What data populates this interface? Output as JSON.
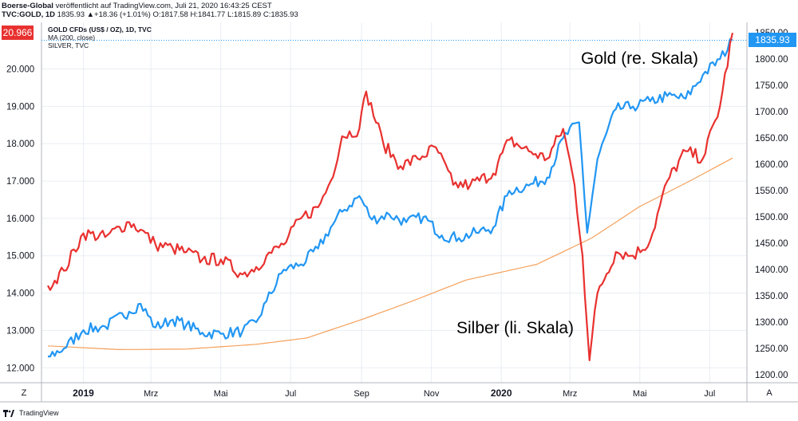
{
  "header": {
    "publisher": "Boerse-Global",
    "published_text": "veröffentlicht auf TradingView.com, Juli 21, 2020 16:43:25 CEST",
    "symbol": "TVC:GOLD, 1D",
    "quote": "1835.93 ▲+18.36 (+1.01%) O:1817.58 H:1841.77 L:1815.89 C:1835.93"
  },
  "legend": {
    "main": "GOLD CFDs (US$ / OZ), 1D, TVC",
    "ma": "MA (200, close)",
    "silver": "SILVER, TVC"
  },
  "badges": {
    "left": "20.966",
    "right": "1835.93"
  },
  "annotations": {
    "gold": "Gold (re. Skala)",
    "silver": "Silber (li. Skala)"
  },
  "buttons": {
    "left": "Z",
    "right": "A"
  },
  "footer": {
    "brand": "TradingView"
  },
  "colors": {
    "gold": "#2196f3",
    "silver": "#e8312f",
    "ma": "#f5a05a",
    "grid": "#e9edf3",
    "axis_text": "#131722"
  },
  "chart_data": {
    "type": "line",
    "x_ticks": [
      "2019",
      "Mrz",
      "Mai",
      "Jul",
      "Sep",
      "Nov",
      "2020",
      "Mrz",
      "Mai",
      "Jul"
    ],
    "x_range": [
      "2018-12-01",
      "2020-07-21"
    ],
    "y_left": {
      "label": "",
      "ylim": [
        11.6,
        21.25
      ],
      "ticks": [
        "12.000",
        "13.000",
        "14.000",
        "15.000",
        "16.000",
        "17.000",
        "18.000",
        "19.000",
        "20.000"
      ]
    },
    "y_right": {
      "label": "",
      "ylim": [
        1185,
        1870
      ],
      "ticks": [
        "1200.00",
        "1250.00",
        "1300.00",
        "1350.00",
        "1400.00",
        "1450.00",
        "1500.00",
        "1550.00",
        "1600.00",
        "1650.00",
        "1700.00",
        "1750.00",
        "1800.00",
        "1850.00"
      ]
    },
    "series": [
      {
        "name": "GOLD CFDs (US$ / OZ), 1D, TVC",
        "axis": "right",
        "x": [
          "2018-12-01",
          "2018-12-15",
          "2019-01-01",
          "2019-01-20",
          "2019-02-10",
          "2019-02-20",
          "2019-03-05",
          "2019-03-20",
          "2019-04-01",
          "2019-04-15",
          "2019-05-01",
          "2019-05-20",
          "2019-06-01",
          "2019-06-10",
          "2019-06-25",
          "2019-07-10",
          "2019-07-25",
          "2019-08-05",
          "2019-08-15",
          "2019-08-30",
          "2019-09-10",
          "2019-09-25",
          "2019-10-10",
          "2019-10-25",
          "2019-11-10",
          "2019-11-25",
          "2019-12-10",
          "2019-12-25",
          "2020-01-08",
          "2020-01-25",
          "2020-02-10",
          "2020-02-24",
          "2020-03-09",
          "2020-03-16",
          "2020-03-25",
          "2020-04-10",
          "2020-04-25",
          "2020-05-10",
          "2020-05-25",
          "2020-06-10",
          "2020-06-25",
          "2020-07-10",
          "2020-07-21"
        ],
        "values": [
          1235,
          1250,
          1285,
          1292,
          1320,
          1335,
          1290,
          1305,
          1295,
          1280,
          1278,
          1283,
          1300,
          1340,
          1400,
          1410,
          1440,
          1480,
          1510,
          1540,
          1495,
          1505,
          1490,
          1500,
          1465,
          1460,
          1470,
          1480,
          1550,
          1560,
          1575,
          1650,
          1680,
          1470,
          1610,
          1705,
          1710,
          1720,
          1730,
          1725,
          1770,
          1800,
          1835.93
        ]
      },
      {
        "name": "SILVER, TVC",
        "axis": "left",
        "x": [
          "2018-12-01",
          "2018-12-15",
          "2019-01-01",
          "2019-01-20",
          "2019-02-10",
          "2019-02-20",
          "2019-03-05",
          "2019-03-20",
          "2019-04-01",
          "2019-04-15",
          "2019-05-01",
          "2019-05-20",
          "2019-06-01",
          "2019-06-10",
          "2019-06-25",
          "2019-07-10",
          "2019-07-25",
          "2019-08-05",
          "2019-08-15",
          "2019-08-30",
          "2019-09-05",
          "2019-09-20",
          "2019-10-05",
          "2019-10-20",
          "2019-11-05",
          "2019-11-20",
          "2019-12-05",
          "2019-12-25",
          "2020-01-08",
          "2020-01-25",
          "2020-02-10",
          "2020-02-24",
          "2020-03-05",
          "2020-03-12",
          "2020-03-18",
          "2020-03-25",
          "2020-04-10",
          "2020-04-25",
          "2020-05-10",
          "2020-05-25",
          "2020-06-10",
          "2020-06-25",
          "2020-07-10",
          "2020-07-21"
        ],
        "values": [
          14.2,
          14.6,
          15.6,
          15.5,
          15.9,
          15.7,
          15.3,
          15.2,
          15.1,
          14.9,
          14.9,
          14.5,
          14.7,
          15.0,
          15.3,
          16.0,
          16.3,
          17.0,
          18.2,
          18.4,
          19.4,
          18.0,
          17.4,
          17.6,
          17.9,
          16.9,
          16.9,
          17.2,
          18.1,
          17.8,
          17.6,
          18.4,
          16.9,
          15.0,
          12.2,
          14.0,
          15.1,
          15.0,
          15.4,
          17.0,
          17.8,
          17.6,
          19.0,
          20.966
        ]
      },
      {
        "name": "MA (200, close)",
        "axis": "right",
        "x": [
          "2018-12-01",
          "2019-02-01",
          "2019-04-01",
          "2019-06-01",
          "2019-07-15",
          "2019-09-01",
          "2019-10-15",
          "2019-12-01",
          "2020-02-01",
          "2020-03-20",
          "2020-05-01",
          "2020-06-15",
          "2020-07-21"
        ],
        "values": [
          1255,
          1248,
          1249,
          1258,
          1270,
          1305,
          1340,
          1380,
          1410,
          1460,
          1520,
          1570,
          1612
        ]
      }
    ]
  }
}
